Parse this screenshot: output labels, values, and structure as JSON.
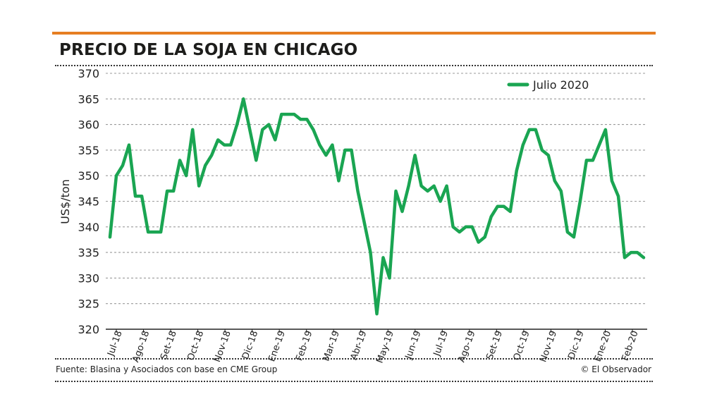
{
  "header": {
    "title": "PRECIO DE LA SOJA EN CHICAGO"
  },
  "footer": {
    "source": "Fuente: Blasina y Asociados con base en CME Group",
    "credit": "© El Observador"
  },
  "colors": {
    "accent": "#e67e22",
    "series": "#1aa552",
    "grid": "#9a9a9a",
    "text": "#222222"
  },
  "chart_data": {
    "type": "line",
    "title": "PRECIO DE LA SOJA EN CHICAGO",
    "xlabel": "",
    "ylabel": "US$/ton",
    "ylim": [
      320,
      370
    ],
    "yticks": [
      320,
      325,
      330,
      335,
      340,
      345,
      350,
      355,
      360,
      365,
      370
    ],
    "grid": true,
    "legend_position": "top-right",
    "x_tick_labels": [
      "Jul-18",
      "Ago-18",
      "Set-18",
      "Oct-18",
      "Nov-18",
      "Dic-18",
      "Ene-19",
      "Feb-19",
      "Mar-19",
      "Abr-19",
      "May-19",
      "Jun-19",
      "Jul-19",
      "Ago-19",
      "Set-19",
      "Oct-19",
      "Nov-19",
      "Dic-19",
      "Ene-20",
      "Feb-20"
    ],
    "series": [
      {
        "name": "Julio 2020",
        "color": "#1aa552",
        "values": [
          338,
          350,
          352,
          356,
          346,
          346,
          339,
          339,
          339,
          347,
          347,
          353,
          350,
          359,
          348,
          352,
          354,
          357,
          356,
          356,
          360,
          365,
          359,
          353,
          359,
          360,
          357,
          362,
          362,
          362,
          361,
          361,
          359,
          356,
          354,
          356,
          349,
          355,
          355,
          347,
          341,
          335,
          323,
          334,
          330,
          347,
          343,
          348,
          354,
          348,
          347,
          348,
          345,
          348,
          340,
          339,
          340,
          340,
          337,
          338,
          342,
          344,
          344,
          343,
          351,
          356,
          359,
          359,
          355,
          354,
          349,
          347,
          339,
          338,
          345,
          353,
          353,
          356,
          359,
          349,
          346,
          334,
          335,
          335,
          334
        ]
      }
    ]
  }
}
